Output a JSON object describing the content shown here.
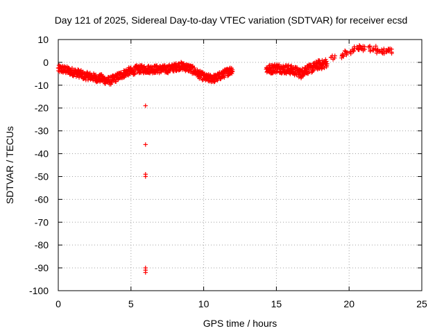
{
  "chart_data": {
    "type": "scatter",
    "title": "Day 121 of 2025, Sidereal Day-to-day VTEC variation (SDTVAR) for receiver ecsd",
    "xlabel": "GPS time / hours",
    "ylabel": "SDTVAR / TECUs",
    "xlim": [
      0,
      25
    ],
    "ylim": [
      -100,
      10
    ],
    "x_ticks": [
      0,
      5,
      10,
      15,
      20,
      25
    ],
    "y_ticks": [
      10,
      0,
      -10,
      -20,
      -30,
      -40,
      -50,
      -60,
      -70,
      -80,
      -90,
      -100
    ],
    "grid": true,
    "marker": "+",
    "marker_color": "#ff0000",
    "series": [
      {
        "name": "SDTVAR",
        "dense_band": {
          "x": [
            0.0,
            0.3,
            0.6,
            0.9,
            1.2,
            1.5,
            1.8,
            2.1,
            2.4,
            2.7,
            3.0,
            3.3,
            3.6,
            3.9,
            4.2,
            4.5,
            4.8,
            5.1,
            5.4,
            5.7,
            6.0,
            6.3,
            6.6,
            6.9,
            7.2,
            7.5,
            7.8,
            8.1,
            8.4,
            8.7,
            9.0,
            9.3,
            9.6,
            9.9,
            10.2,
            10.5,
            10.8,
            11.1,
            11.4,
            11.7,
            12.0
          ],
          "y": [
            -3,
            -3,
            -3.5,
            -4,
            -4.5,
            -5,
            -6,
            -6,
            -6.5,
            -7,
            -7,
            -8,
            -8,
            -7,
            -6,
            -5,
            -4,
            -4,
            -3,
            -3,
            -3,
            -3,
            -3,
            -3,
            -3,
            -3,
            -2.5,
            -2,
            -1.5,
            -2,
            -2.5,
            -3.5,
            -5,
            -6,
            -7,
            -7,
            -7,
            -6,
            -5,
            -4,
            -3
          ]
        },
        "dense_band_2": {
          "x": [
            14.3,
            14.6,
            14.9,
            15.2,
            15.5,
            15.8,
            16.1,
            16.4,
            16.7,
            17.0,
            17.3,
            17.6,
            17.9,
            18.2,
            18.5
          ],
          "y": [
            -3,
            -3,
            -2.5,
            -2.5,
            -3,
            -3,
            -3.5,
            -4,
            -5,
            -3,
            -3,
            -2,
            -1,
            -1,
            0
          ]
        },
        "sparse_upper": {
          "x": [
            18.9,
            19.5,
            19.8,
            20.2,
            20.5,
            20.8,
            21.1,
            21.4,
            21.7,
            22.0,
            22.3,
            22.6,
            22.8
          ],
          "y": [
            2,
            3,
            4,
            5,
            6,
            6.5,
            6,
            6,
            6,
            5,
            5,
            5,
            5
          ]
        },
        "outliers": {
          "x": [
            6.0,
            6.0,
            6.0,
            6.0,
            6.0,
            6.0,
            6.0
          ],
          "y": [
            -19,
            -36,
            -49,
            -50,
            -90,
            -91,
            -92
          ]
        }
      }
    ]
  }
}
